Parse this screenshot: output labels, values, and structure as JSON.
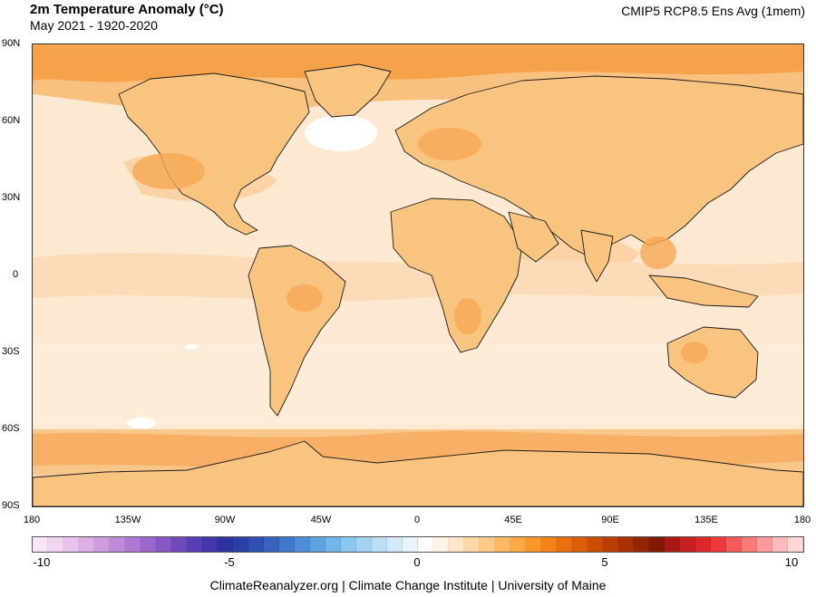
{
  "header": {
    "title": "2m Temperature Anomaly (°C)",
    "subtitle": "May 2021 - 1920-2020",
    "model": "CMIP5 RCP8.5 Ens Avg (1mem)"
  },
  "axes": {
    "lat_labels": [
      "90N",
      "60N",
      "30N",
      "0",
      "30S",
      "60S",
      "90S"
    ],
    "lon_labels": [
      "180",
      "135W",
      "90W",
      "45W",
      "0",
      "45E",
      "90E",
      "135E",
      "180"
    ]
  },
  "colorbar": {
    "labels": [
      "-10",
      "-5",
      "0",
      "5",
      "10"
    ],
    "min": -10,
    "max": 10,
    "colors": [
      "#f7e6f7",
      "#f0d6f0",
      "#e8c4ec",
      "#dcb0e6",
      "#cf9ce0",
      "#c08ada",
      "#ae79d3",
      "#9a68cc",
      "#8558c4",
      "#6e4abc",
      "#5840b4",
      "#4236aa",
      "#2f33a0",
      "#2a3fa8",
      "#2f4fb4",
      "#3862c0",
      "#4278cc",
      "#4e8ed6",
      "#5ea3e0",
      "#73b6e8",
      "#8ac6ee",
      "#a2d3f2",
      "#bbdff5",
      "#d3eaf8",
      "#e9f3fa",
      "#ffffff",
      "#fff3e3",
      "#ffe6c7",
      "#ffd8a8",
      "#ffc987",
      "#ffb965",
      "#ffa845",
      "#fb962a",
      "#f38319",
      "#e8700f",
      "#db5f09",
      "#cc4e05",
      "#bb3e03",
      "#a83002",
      "#952401",
      "#821a00",
      "#a81818",
      "#c42020",
      "#dc2828",
      "#ee3a3a",
      "#f55a5a",
      "#f87a7a",
      "#fa9a9a",
      "#fcbaba",
      "#fdd6d6"
    ]
  },
  "credit": "ClimateReanalyzer.org | Climate Change Institute | University of Maine"
}
